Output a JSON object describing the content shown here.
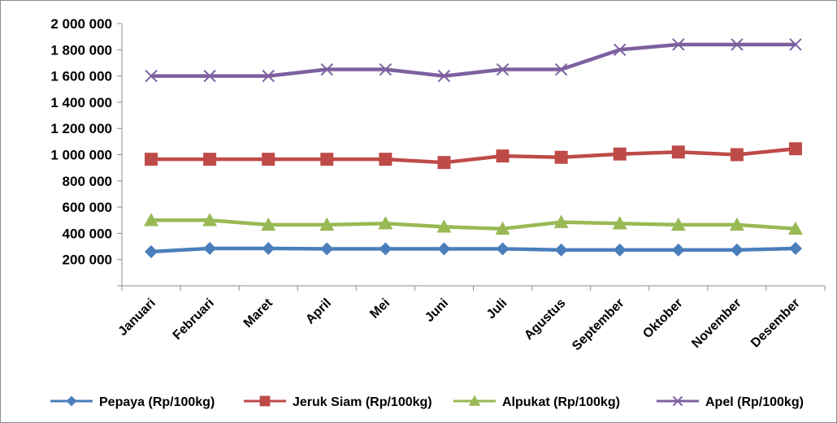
{
  "chart_data": {
    "type": "line",
    "title": "",
    "xlabel": "",
    "ylabel": "",
    "categories": [
      "Januari",
      "Februari",
      "Maret",
      "April",
      "Mei",
      "Juni",
      "Juli",
      "Agustus",
      "September",
      "Oktober",
      "November",
      "Desember"
    ],
    "ylim": [
      0,
      2000000
    ],
    "ytick_labels": [
      "2 000 000",
      "1 800 000",
      "1 600 000",
      "1 400 000",
      "1 200 000",
      "1 000 000",
      "800 000",
      "600 000",
      "400 000",
      "200 000"
    ],
    "ytick_values": [
      2000000,
      1800000,
      1600000,
      1400000,
      1200000,
      1000000,
      800000,
      600000,
      400000,
      200000
    ],
    "grid": false,
    "legend_position": "bottom",
    "series": [
      {
        "name": "Pepaya (Rp/100kg)",
        "color": "#4a7ebb",
        "marker": "diamond",
        "values": [
          260000,
          285000,
          285000,
          282000,
          282000,
          282000,
          282000,
          273000,
          273000,
          273000,
          273000,
          285000
        ]
      },
      {
        "name": "Jeruk Siam (Rp/100kg)",
        "color": "#be4b48",
        "marker": "square",
        "values": [
          965000,
          965000,
          965000,
          965000,
          965000,
          940000,
          990000,
          980000,
          1005000,
          1020000,
          1000000,
          1045000
        ]
      },
      {
        "name": "Alpukat (Rp/100kg)",
        "color": "#98b954",
        "marker": "triangle",
        "values": [
          500000,
          500000,
          465000,
          465000,
          475000,
          450000,
          435000,
          485000,
          475000,
          465000,
          465000,
          435000
        ]
      },
      {
        "name": "Apel (Rp/100kg)",
        "color": "#7d60a0",
        "marker": "x",
        "values": [
          1600000,
          1600000,
          1600000,
          1650000,
          1650000,
          1600000,
          1650000,
          1650000,
          1800000,
          1840000,
          1840000,
          1840000
        ]
      }
    ]
  }
}
